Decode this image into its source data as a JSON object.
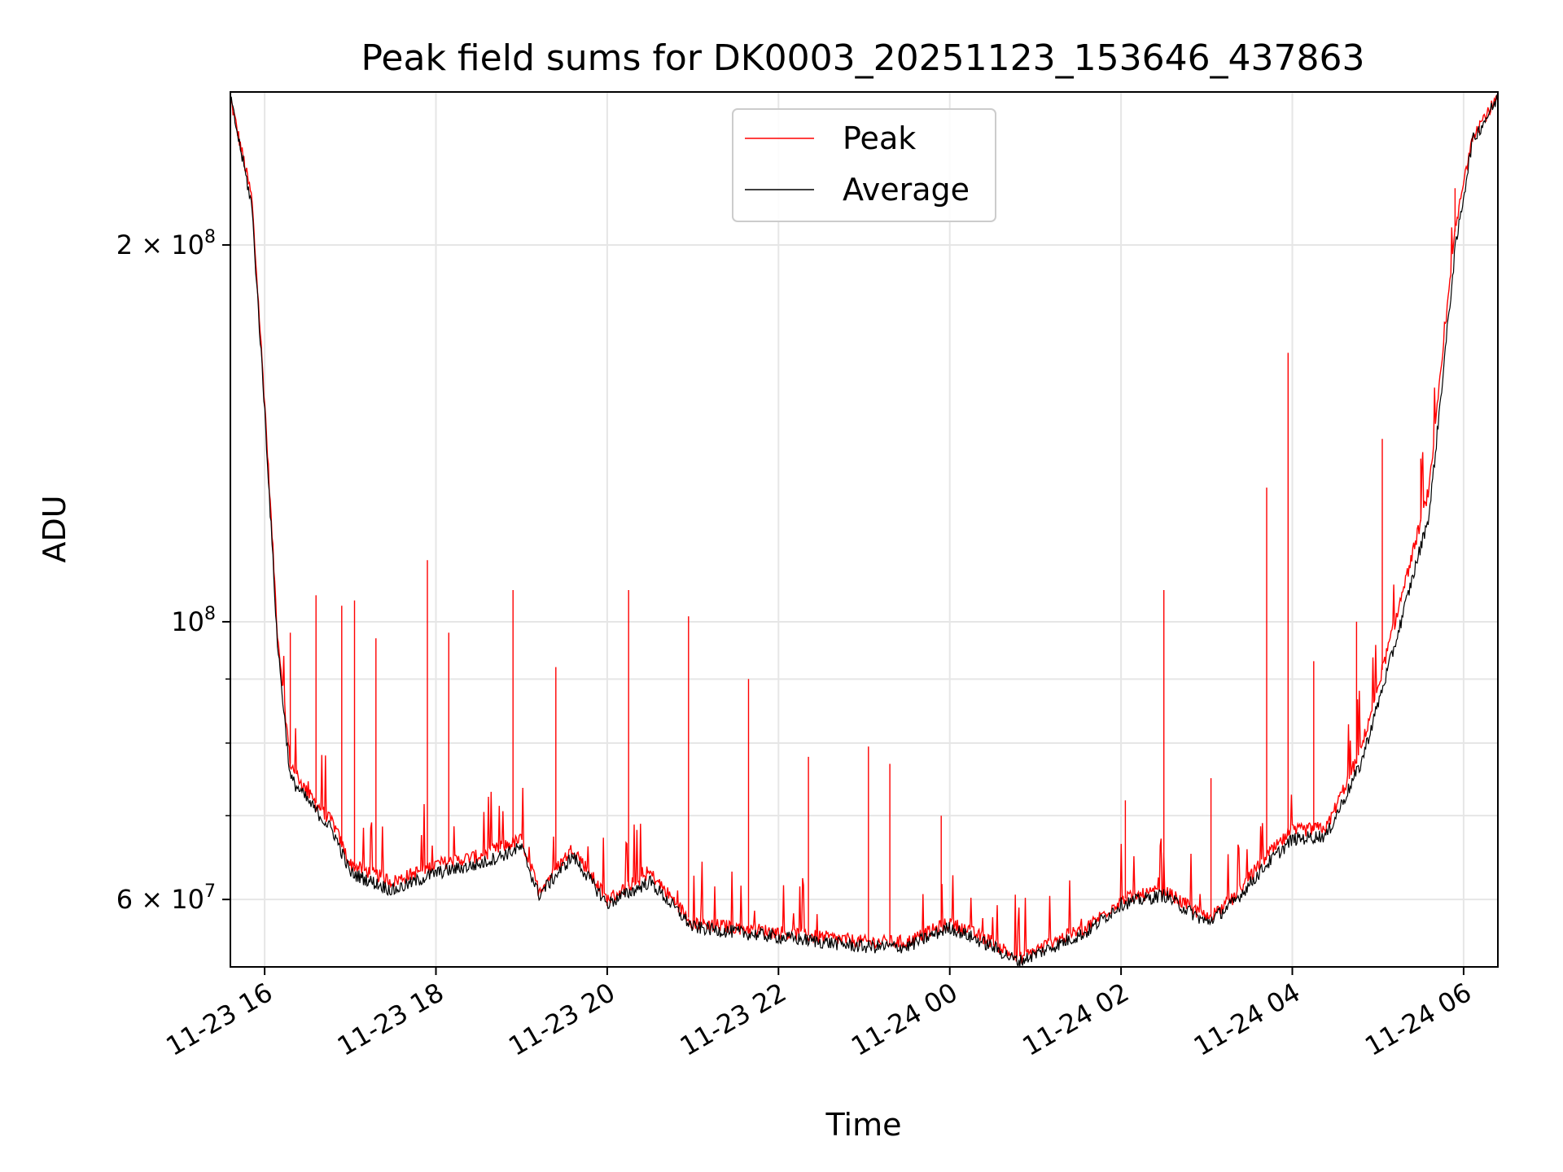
{
  "chart_data": {
    "type": "line",
    "title": "Peak field sums for DK0003_20251123_153646_437863",
    "xlabel": "Time",
    "ylabel": "ADU",
    "yscale": "log",
    "xlim_hours": [
      15.6,
      30.4
    ],
    "ylim": [
      53000000,
      265000000
    ],
    "grid": true,
    "legend_position": "top-center",
    "x_ticks": [
      {
        "hour": 16,
        "label": "11-23 16"
      },
      {
        "hour": 18,
        "label": "11-23 18"
      },
      {
        "hour": 20,
        "label": "11-23 20"
      },
      {
        "hour": 22,
        "label": "11-23 22"
      },
      {
        "hour": 24,
        "label": "11-24 00"
      },
      {
        "hour": 26,
        "label": "11-24 02"
      },
      {
        "hour": 28,
        "label": "11-24 04"
      },
      {
        "hour": 30,
        "label": "11-24 06"
      }
    ],
    "y_major_ticks": [
      {
        "value": 60000000,
        "mantissa": "6",
        "base": "10",
        "exp": "7"
      },
      {
        "value": 100000000,
        "mantissa": "",
        "base": "10",
        "exp": "8"
      },
      {
        "value": 200000000,
        "mantissa": "2",
        "base": "10",
        "exp": "8"
      }
    ],
    "y_minor_ticks": [
      70000000,
      80000000,
      90000000
    ],
    "series": [
      {
        "name": "Peak",
        "color": "#ff0000",
        "x_hours": [
          15.6,
          15.85,
          16.0,
          16.15,
          16.3,
          16.5,
          16.8,
          17.0,
          17.5,
          18.0,
          18.5,
          19.0,
          19.2,
          19.6,
          20.0,
          20.5,
          21.0,
          21.5,
          22.0,
          22.5,
          23.0,
          23.5,
          24.0,
          24.5,
          24.8,
          25.2,
          25.6,
          26.0,
          26.5,
          27.0,
          27.3,
          27.7,
          28.0,
          28.4,
          28.8,
          29.2,
          29.6,
          29.9,
          30.1,
          30.4
        ],
        "values": [
          262000000,
          218000000,
          150000000,
          98000000,
          77000000,
          73000000,
          69000000,
          64000000,
          62000000,
          64000000,
          65000000,
          67000000,
          61000000,
          66000000,
          60000000,
          63000000,
          57500000,
          57000000,
          56500000,
          56000000,
          55500000,
          55500000,
          57500000,
          55500000,
          53800000,
          55500000,
          57000000,
          60000000,
          61000000,
          58000000,
          60000000,
          65000000,
          68000000,
          68500000,
          79000000,
          100000000,
          128000000,
          205000000,
          245000000,
          262000000
        ],
        "spikes": [
          {
            "hour": 16.3,
            "value": 98000000
          },
          {
            "hour": 16.6,
            "value": 105000000
          },
          {
            "hour": 16.9,
            "value": 103000000
          },
          {
            "hour": 17.05,
            "value": 104000000
          },
          {
            "hour": 17.3,
            "value": 97000000
          },
          {
            "hour": 17.9,
            "value": 112000000
          },
          {
            "hour": 18.15,
            "value": 98000000
          },
          {
            "hour": 18.9,
            "value": 106000000
          },
          {
            "hour": 19.4,
            "value": 92000000
          },
          {
            "hour": 20.25,
            "value": 106000000
          },
          {
            "hour": 20.95,
            "value": 101000000
          },
          {
            "hour": 21.65,
            "value": 90000000
          },
          {
            "hour": 22.35,
            "value": 78000000
          },
          {
            "hour": 23.05,
            "value": 79500000
          },
          {
            "hour": 23.3,
            "value": 77000000
          },
          {
            "hour": 23.9,
            "value": 70000000
          },
          {
            "hour": 26.05,
            "value": 72000000
          },
          {
            "hour": 26.5,
            "value": 106000000
          },
          {
            "hour": 27.05,
            "value": 75000000
          },
          {
            "hour": 27.7,
            "value": 128000000
          },
          {
            "hour": 27.95,
            "value": 164000000
          },
          {
            "hour": 28.25,
            "value": 93000000
          },
          {
            "hour": 28.75,
            "value": 100000000
          },
          {
            "hour": 29.05,
            "value": 140000000
          },
          {
            "hour": 29.5,
            "value": 135000000
          },
          {
            "hour": 29.9,
            "value": 222000000
          }
        ]
      },
      {
        "name": "Average",
        "color": "#000000",
        "x_hours": [
          15.6,
          15.85,
          16.0,
          16.15,
          16.3,
          16.5,
          16.8,
          17.0,
          17.5,
          18.0,
          18.5,
          19.0,
          19.2,
          19.6,
          20.0,
          20.5,
          21.0,
          21.5,
          22.0,
          22.5,
          23.0,
          23.5,
          24.0,
          24.5,
          24.8,
          25.2,
          25.6,
          26.0,
          26.5,
          27.0,
          27.3,
          27.7,
          28.0,
          28.4,
          28.8,
          29.2,
          29.6,
          29.9,
          30.1,
          30.4
        ],
        "values": [
          262000000,
          215000000,
          148000000,
          96000000,
          75000000,
          72000000,
          68000000,
          63000000,
          61000000,
          63000000,
          64000000,
          66000000,
          60500000,
          65000000,
          59500000,
          62000000,
          57000000,
          56500000,
          56000000,
          55500000,
          55000000,
          55000000,
          57000000,
          55000000,
          53500000,
          55000000,
          56500000,
          59500000,
          60500000,
          57500000,
          59500000,
          64000000,
          67000000,
          67500000,
          77000000,
          96000000,
          122000000,
          198000000,
          242000000,
          262000000
        ]
      }
    ]
  }
}
